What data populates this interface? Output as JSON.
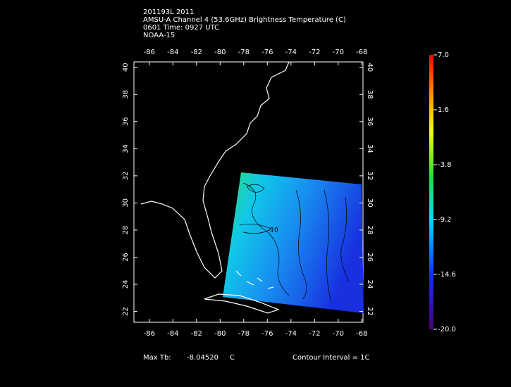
{
  "header": {
    "lines": [
      "201193L 2011",
      "AMSU-A Channel 4 (53.6GHz) Brightness Temperature (C)",
      "0601 Time: 0927 UTC",
      "NOAA-15"
    ]
  },
  "map": {
    "lon_range": [
      -87.3,
      -67.9
    ],
    "lat_range": [
      21.2,
      40.4
    ],
    "lon_ticks": [
      -86,
      -84,
      -82,
      -80,
      -78,
      -76,
      -74,
      -72,
      -70,
      -68
    ],
    "lat_ticks": [
      22,
      24,
      26,
      28,
      30,
      32,
      34,
      36,
      38,
      40
    ],
    "contour_label": "-10"
  },
  "colorbar": {
    "range": [
      -20,
      7
    ],
    "ticks": [
      {
        "value": 7,
        "label": "7.0"
      },
      {
        "value": 1.6,
        "label": "1.6"
      },
      {
        "value": -3.8,
        "label": "-3.8"
      },
      {
        "value": -9.2,
        "label": "-9.2"
      },
      {
        "value": -14.6,
        "label": "-14.6"
      },
      {
        "value": -20,
        "label": "-20.0"
      }
    ]
  },
  "footer": {
    "max_tb_label": "Max Tb:",
    "max_tb": "-8.04520",
    "unit": "C",
    "contour_interval": "Contour Interval = 1C"
  }
}
